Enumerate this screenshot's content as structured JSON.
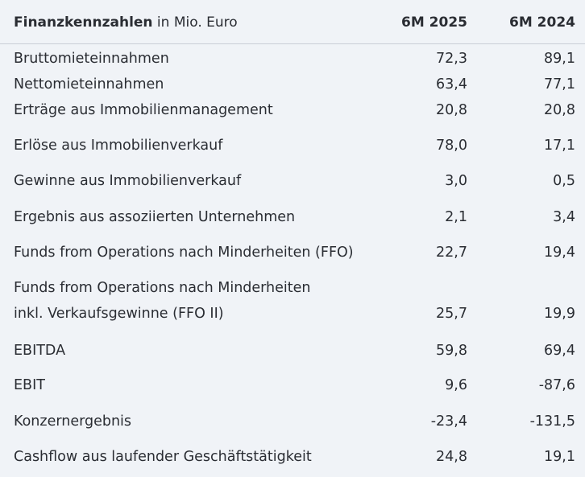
{
  "header": {
    "title_bold": "Finanzkennzahlen",
    "title_unit": " in Mio. Euro",
    "col1": "6M 2025",
    "col2": "6M 2024"
  },
  "rows": [
    {
      "label": "Bruttomieteinnahmen",
      "v1": "72,3",
      "v2": "89,1"
    },
    {
      "label": "Nettomieteinnahmen",
      "v1": "63,4",
      "v2": "77,1"
    },
    {
      "label": "Erträge aus Immobilienmanagement",
      "v1": "20,8",
      "v2": "20,8"
    },
    {
      "label": "Erlöse aus Immobilienverkauf",
      "v1": "78,0",
      "v2": "17,1"
    },
    {
      "label": "Gewinne aus Immobilienverkauf",
      "v1": "3,0",
      "v2": "0,5"
    },
    {
      "label": "Ergebnis aus assoziierten Unternehmen",
      "v1": "2,1",
      "v2": "3,4"
    },
    {
      "label": "Funds from Operations nach Minderheiten (FFO)",
      "v1": "22,7",
      "v2": "19,4"
    },
    {
      "label_line1": "Funds from Operations nach Minderheiten",
      "label_line2": "inkl. Verkaufsgewinne (FFO II)",
      "v1": "25,7",
      "v2": "19,9"
    },
    {
      "label": "EBITDA",
      "v1": "59,8",
      "v2": "69,4"
    },
    {
      "label": "EBIT",
      "v1": "9,6",
      "v2": "-87,6"
    },
    {
      "label": "Konzernergebnis",
      "v1": "-23,4",
      "v2": "-131,5"
    },
    {
      "label": "Cashflow aus laufender Geschäftstätigkeit",
      "v1": "24,8",
      "v2": "19,1"
    }
  ]
}
